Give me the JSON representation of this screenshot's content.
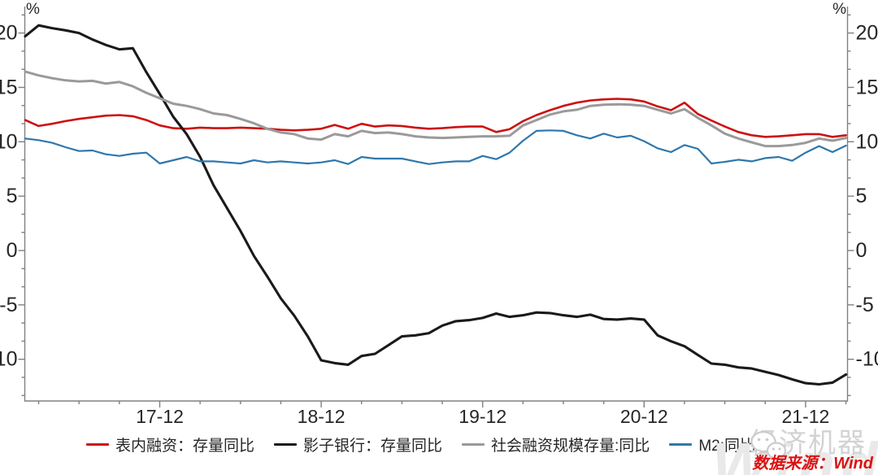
{
  "chart_data": {
    "type": "line",
    "title": "",
    "unit_label_left": "%",
    "unit_label_right": "%",
    "x_start": "2017-02",
    "x_end": "2022-03",
    "frequency": "monthly",
    "x_tick_labels": [
      "17-12",
      "18-12",
      "19-12",
      "20-12",
      "21-12"
    ],
    "yticks": [
      -10,
      -5,
      0,
      5,
      10,
      15,
      20
    ],
    "y_minor_divisions": 3,
    "ylim": [
      -13.8,
      22.4
    ],
    "grid": false,
    "legend_position": "bottom",
    "axis_color": "#808080",
    "tick_label_color": "#262626",
    "series": [
      {
        "id": "on-balance-financing",
        "name": "表内融资：存量同比",
        "color": "#cc1111",
        "width": 2.6,
        "values": [
          12.0,
          11.45,
          11.65,
          11.9,
          12.1,
          12.25,
          12.4,
          12.45,
          12.35,
          12.0,
          11.5,
          11.25,
          11.2,
          11.3,
          11.25,
          11.25,
          11.3,
          11.25,
          11.2,
          11.1,
          11.05,
          11.1,
          11.2,
          11.55,
          11.2,
          11.65,
          11.4,
          11.5,
          11.45,
          11.3,
          11.2,
          11.25,
          11.35,
          11.4,
          11.4,
          10.9,
          11.15,
          11.9,
          12.45,
          12.9,
          13.3,
          13.6,
          13.8,
          13.9,
          13.95,
          13.9,
          13.7,
          13.25,
          12.9,
          13.6,
          12.55,
          11.95,
          11.4,
          10.9,
          10.6,
          10.45,
          10.5,
          10.6,
          10.7,
          10.7,
          10.45,
          10.6
        ]
      },
      {
        "id": "shadow-banking",
        "name": "影子银行：存量同比",
        "color": "#1a1a1a",
        "width": 3.1,
        "values": [
          19.7,
          20.7,
          20.45,
          20.25,
          20.0,
          19.4,
          18.9,
          18.5,
          18.6,
          16.4,
          14.4,
          12.3,
          10.7,
          8.6,
          6.0,
          3.9,
          1.8,
          -0.5,
          -2.4,
          -4.4,
          -6.0,
          -7.9,
          -10.1,
          -10.35,
          -10.5,
          -9.7,
          -9.5,
          -8.7,
          -7.9,
          -7.8,
          -7.6,
          -6.9,
          -6.5,
          -6.4,
          -6.2,
          -5.8,
          -6.1,
          -5.95,
          -5.7,
          -5.75,
          -5.95,
          -6.1,
          -5.9,
          -6.3,
          -6.35,
          -6.25,
          -6.35,
          -7.8,
          -8.35,
          -8.8,
          -9.6,
          -10.4,
          -10.5,
          -10.75,
          -10.85,
          -11.15,
          -11.45,
          -11.85,
          -12.2,
          -12.3,
          -12.15,
          -11.4
        ]
      },
      {
        "id": "tsf-stock",
        "name": "社会融资规模存量:同比",
        "color": "#9a9a9a",
        "width": 3.0,
        "values": [
          16.45,
          16.1,
          15.85,
          15.65,
          15.55,
          15.6,
          15.35,
          15.5,
          15.1,
          14.5,
          14.0,
          13.5,
          13.3,
          13.0,
          12.6,
          12.45,
          12.1,
          11.7,
          11.2,
          10.85,
          10.7,
          10.3,
          10.2,
          10.7,
          10.5,
          11.0,
          10.8,
          10.85,
          10.7,
          10.5,
          10.4,
          10.35,
          10.4,
          10.45,
          10.5,
          10.5,
          10.55,
          11.5,
          12.0,
          12.5,
          12.8,
          12.95,
          13.3,
          13.4,
          13.45,
          13.4,
          13.3,
          12.95,
          12.6,
          13.0,
          12.2,
          11.5,
          10.75,
          10.3,
          9.95,
          9.6,
          9.6,
          9.7,
          9.9,
          10.3,
          10.1,
          10.35
        ]
      },
      {
        "id": "m2",
        "name": "M2:同比",
        "color": "#2e77ad",
        "width": 2.2,
        "values": [
          10.3,
          10.15,
          9.9,
          9.5,
          9.15,
          9.2,
          8.85,
          8.7,
          8.9,
          9.0,
          8.0,
          8.3,
          8.6,
          8.2,
          8.2,
          8.1,
          8.0,
          8.3,
          8.1,
          8.2,
          8.1,
          8.0,
          8.1,
          8.3,
          7.95,
          8.6,
          8.45,
          8.45,
          8.45,
          8.2,
          7.95,
          8.1,
          8.2,
          8.2,
          8.7,
          8.4,
          9.0,
          10.1,
          11.0,
          11.05,
          11.0,
          10.6,
          10.3,
          10.75,
          10.4,
          10.55,
          10.05,
          9.4,
          9.05,
          9.7,
          9.35,
          8.0,
          8.15,
          8.35,
          8.2,
          8.5,
          8.6,
          8.25,
          9.0,
          9.6,
          9.05,
          9.65
        ]
      }
    ]
  },
  "source": {
    "text": "数据来源：Wind",
    "color": "#dd1111"
  },
  "watermark": {
    "brand": "经济机器",
    "big_text": "Wind"
  }
}
